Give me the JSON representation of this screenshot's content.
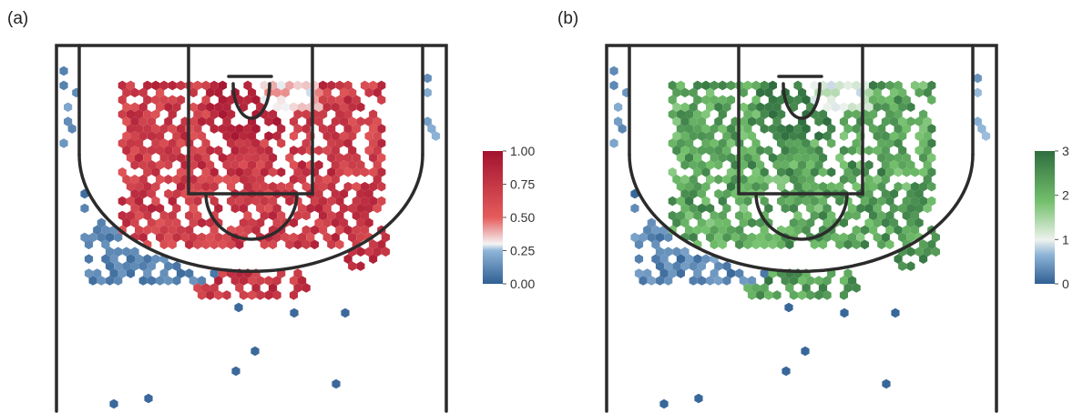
{
  "chart_data": [
    {
      "panel_label": "(a)",
      "type": "heatmap",
      "title": "",
      "xlabel": "",
      "ylabel": "",
      "legend": {
        "position": "right",
        "ticks": [
          "1.00",
          "0.75",
          "0.50",
          "0.25",
          "0.00"
        ],
        "tick_values": [
          1.0,
          0.75,
          0.5,
          0.25,
          0.0
        ],
        "range": [
          0,
          1
        ],
        "colors": {
          "low": "#2f5f93",
          "lowmid": "#8fb5d8",
          "mid": "#f4f4f4",
          "midhigh": "#e55b5b",
          "high": "#a3122f"
        }
      }
    },
    {
      "panel_label": "(b)",
      "type": "heatmap",
      "title": "",
      "xlabel": "",
      "ylabel": "",
      "legend": {
        "position": "right",
        "ticks": [
          "3",
          "2",
          "1",
          "0"
        ],
        "tick_values": [
          3,
          2,
          1,
          0
        ],
        "range": [
          0,
          3
        ],
        "colors": {
          "low": "#2f5f93",
          "lowmid": "#8fb5d8",
          "mid": "#eef2ee",
          "midhigh": "#73c06c",
          "high": "#2f6e3f"
        }
      }
    }
  ]
}
